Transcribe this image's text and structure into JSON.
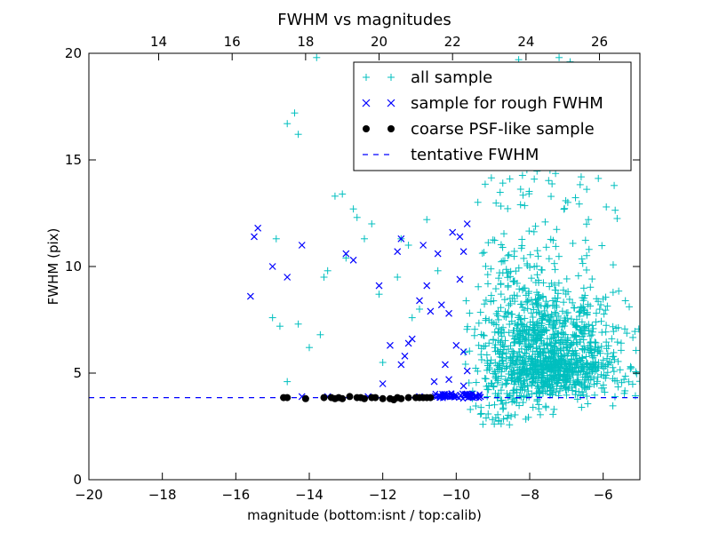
{
  "chart_data": {
    "type": "scatter",
    "title": "FWHM vs magnitudes",
    "xlabel": "magnitude (bottom:isnt / top:calib)",
    "ylabel": "FWHM (pix)",
    "xlim": [
      -20,
      -5
    ],
    "ylim": [
      0,
      20
    ],
    "x_ticks": [
      -20,
      -18,
      -16,
      -14,
      -12,
      -10,
      -8,
      -6
    ],
    "x_tick_labels": [
      "−20",
      "−18",
      "−16",
      "−14",
      "−12",
      "−10",
      "−8",
      "−6"
    ],
    "y_ticks": [
      0,
      5,
      10,
      15,
      20
    ],
    "y_tick_labels": [
      "0",
      "5",
      "10",
      "15",
      "20"
    ],
    "top_axis": {
      "xlim": [
        12.1,
        27.1
      ],
      "ticks": [
        14,
        16,
        18,
        20,
        22,
        24,
        26
      ],
      "tick_labels": [
        "14",
        "16",
        "18",
        "20",
        "22",
        "24",
        "26"
      ]
    },
    "grid": false,
    "legend_position": "top-right",
    "series": [
      {
        "name": "all sample",
        "marker": "+",
        "color": "#00bfbf",
        "points": [
          [
            -14.9,
            11.3
          ],
          [
            -14.6,
            16.7
          ],
          [
            -14.4,
            17.2
          ],
          [
            -14.3,
            16.2
          ],
          [
            -13.8,
            19.8
          ],
          [
            -14.6,
            4.6
          ],
          [
            -14.3,
            7.3
          ],
          [
            -14.0,
            6.2
          ],
          [
            -13.7,
            6.8
          ],
          [
            -13.6,
            9.5
          ],
          [
            -13.5,
            9.8
          ],
          [
            -13.3,
            13.3
          ],
          [
            -13.1,
            13.4
          ],
          [
            -12.8,
            12.7
          ],
          [
            -12.7,
            12.3
          ],
          [
            -12.5,
            11.3
          ],
          [
            -12.3,
            12.0
          ],
          [
            -12.1,
            8.7
          ],
          [
            -11.8,
            14.8
          ],
          [
            -11.5,
            11.3
          ],
          [
            -11.3,
            11.0
          ],
          [
            -11.0,
            8.0
          ],
          [
            -10.8,
            12.2
          ],
          [
            -10.5,
            9.8
          ],
          [
            -15.0,
            7.6
          ],
          [
            -14.8,
            7.2
          ],
          [
            -13.0,
            10.4
          ],
          [
            -12.0,
            5.5
          ],
          [
            -11.6,
            9.5
          ],
          [
            -11.2,
            7.6
          ],
          [
            -5.7,
            13.8
          ],
          [
            -6.4,
            12.2
          ],
          [
            -6.9,
            19.6
          ],
          [
            -7.2,
            19.8
          ],
          [
            -8.3,
            19.7
          ]
        ]
      },
      {
        "name": "sample for rough FWHM",
        "marker": "x",
        "color": "#0000ff",
        "points": [
          [
            -15.6,
            8.6
          ],
          [
            -15.5,
            11.4
          ],
          [
            -15.4,
            11.8
          ],
          [
            -15.0,
            10.0
          ],
          [
            -14.6,
            9.5
          ],
          [
            -14.2,
            11.0
          ],
          [
            -13.0,
            10.6
          ],
          [
            -12.8,
            10.3
          ],
          [
            -12.1,
            9.1
          ],
          [
            -11.6,
            10.7
          ],
          [
            -11.5,
            11.3
          ],
          [
            -11.3,
            6.4
          ],
          [
            -11.2,
            6.6
          ],
          [
            -11.0,
            8.4
          ],
          [
            -10.9,
            11.0
          ],
          [
            -10.8,
            9.1
          ],
          [
            -10.7,
            7.9
          ],
          [
            -10.5,
            10.6
          ],
          [
            -10.4,
            8.2
          ],
          [
            -10.2,
            7.8
          ],
          [
            -10.1,
            11.6
          ],
          [
            -9.9,
            11.4
          ],
          [
            -9.8,
            10.7
          ],
          [
            -9.7,
            12.0
          ],
          [
            -9.9,
            9.4
          ],
          [
            -10.0,
            6.3
          ],
          [
            -10.3,
            5.4
          ],
          [
            -11.4,
            5.8
          ],
          [
            -11.5,
            5.4
          ],
          [
            -11.8,
            6.3
          ],
          [
            -12.0,
            4.5
          ],
          [
            -10.6,
            4.6
          ],
          [
            -10.2,
            4.7
          ],
          [
            -9.8,
            6.0
          ],
          [
            -9.7,
            5.1
          ],
          [
            -9.8,
            4.4
          ],
          [
            -14.2,
            3.9
          ],
          [
            -13.5,
            3.9
          ],
          [
            -12.4,
            3.9
          ],
          [
            -11.0,
            3.9
          ],
          [
            -10.0,
            3.9
          ],
          [
            -9.6,
            3.9
          ]
        ]
      },
      {
        "name": "coarse PSF-like sample",
        "marker": "o",
        "color": "#000000",
        "points": [
          [
            -14.7,
            3.85
          ],
          [
            -14.6,
            3.85
          ],
          [
            -14.1,
            3.8
          ],
          [
            -13.6,
            3.85
          ],
          [
            -13.4,
            3.85
          ],
          [
            -13.3,
            3.8
          ],
          [
            -13.2,
            3.85
          ],
          [
            -13.1,
            3.8
          ],
          [
            -12.9,
            3.9
          ],
          [
            -12.7,
            3.85
          ],
          [
            -12.6,
            3.85
          ],
          [
            -12.5,
            3.8
          ],
          [
            -12.3,
            3.85
          ],
          [
            -12.2,
            3.85
          ],
          [
            -12.0,
            3.8
          ],
          [
            -11.8,
            3.8
          ],
          [
            -11.7,
            3.75
          ],
          [
            -11.6,
            3.85
          ],
          [
            -11.5,
            3.8
          ],
          [
            -11.3,
            3.85
          ],
          [
            -11.1,
            3.85
          ],
          [
            -11.0,
            3.85
          ],
          [
            -10.9,
            3.85
          ],
          [
            -10.8,
            3.85
          ],
          [
            -10.7,
            3.85
          ]
        ]
      },
      {
        "name": "tentative FWHM",
        "marker": "dashed-line",
        "color": "#0000ff",
        "y": 3.85
      }
    ]
  }
}
